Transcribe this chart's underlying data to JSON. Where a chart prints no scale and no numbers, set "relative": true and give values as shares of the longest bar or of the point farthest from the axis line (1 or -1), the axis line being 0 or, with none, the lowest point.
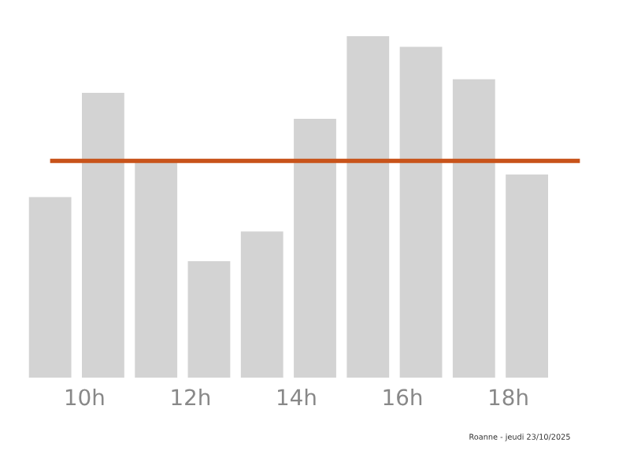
{
  "chart_data": {
    "type": "bar",
    "relative": true,
    "categories": [
      null,
      "10h",
      null,
      "12h",
      null,
      "14h",
      null,
      "16h",
      null,
      "18h",
      null
    ],
    "values": [
      0.529,
      0.834,
      0.631,
      0.341,
      0.428,
      0.758,
      1,
      0.969,
      0.874,
      0.595,
      0
    ],
    "color": "#d3d3d3",
    "ref_lines": [
      {
        "axis": "y",
        "value": 0.635,
        "color": "#c8531a",
        "line_style": "solid"
      }
    ],
    "annotations": [
      "Roanne - jeudi 23/10/2025"
    ],
    "grid": false,
    "legend": false
  }
}
